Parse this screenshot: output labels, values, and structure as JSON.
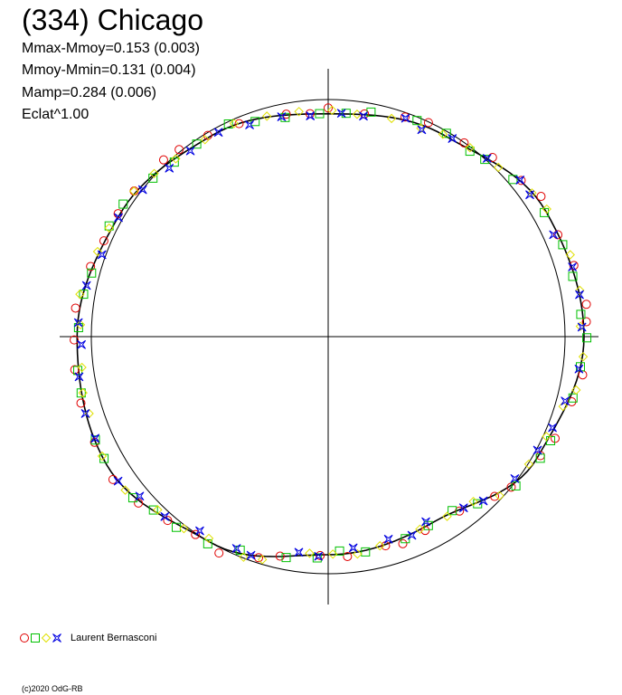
{
  "header": {
    "title": "(334) Chicago",
    "stats": [
      "Mmax-Mmoy=0.153 (0.003)",
      "Mmoy-Mmin=0.131 (0.004)",
      "Mamp=0.284 (0.006)",
      "Eclat^1.00"
    ]
  },
  "legend": {
    "author": "Laurent Bernasconi",
    "symbols": [
      {
        "shape": "circle",
        "color": "#e00000"
      },
      {
        "shape": "square",
        "color": "#00c000"
      },
      {
        "shape": "diamond",
        "color": "#e0e000"
      },
      {
        "shape": "star",
        "color": "#0000e0"
      }
    ]
  },
  "footer": {
    "copyright": "(c)2020 OdG-RB"
  },
  "chart_data": {
    "type": "scatter",
    "coordinate_system": "polar",
    "description_of_axes": "rotational phase as angle (clockwise from top), relative brightness as radius",
    "reference_circle_radius": 1.0,
    "fitted_curve": {
      "phase_deg": [
        0,
        30,
        60,
        90,
        120,
        150,
        180,
        210,
        240,
        270,
        300,
        330,
        360
      ],
      "radius": [
        0.94,
        0.98,
        1.06,
        1.08,
        1.02,
        0.9,
        0.92,
        1.0,
        1.08,
        1.06,
        1.02,
        0.98,
        0.94
      ]
    },
    "series": [
      {
        "name": "circle",
        "color": "#e00000"
      },
      {
        "name": "square",
        "color": "#00c000"
      },
      {
        "name": "diamond",
        "color": "#e0e000"
      },
      {
        "name": "star",
        "color": "#0000e0"
      }
    ]
  }
}
